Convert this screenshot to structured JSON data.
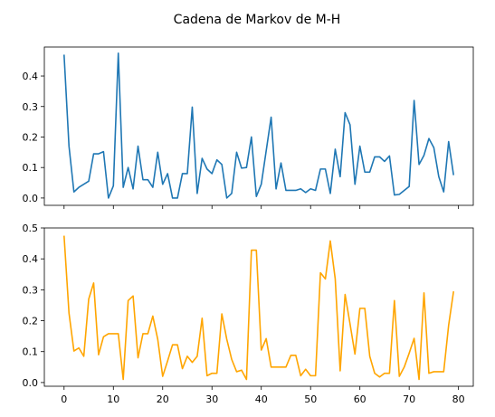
{
  "title": "Cadena de Markov de M-H",
  "colors": {
    "top_line": "#1f77b4",
    "bottom_line": "#ffa500",
    "axis": "#000000"
  },
  "chart_data": [
    {
      "type": "line",
      "xlim": [
        -4,
        83
      ],
      "ylim": [
        -0.024,
        0.495
      ],
      "yticks": [
        0.0,
        0.1,
        0.2,
        0.3,
        0.4
      ],
      "ytick_labels": [
        "0.0",
        "0.1",
        "0.2",
        "0.3",
        "0.4"
      ],
      "xticks": [
        0,
        10,
        20,
        30,
        40,
        50,
        60,
        70,
        80
      ],
      "xtick_labels_shown": false,
      "grid": false,
      "series": [
        {
          "x": [
            0,
            1,
            2,
            3,
            4,
            5,
            6,
            7,
            8,
            9,
            10,
            11,
            12,
            13,
            14,
            15,
            16,
            17,
            18,
            19,
            20,
            21,
            22,
            23,
            24,
            25,
            26,
            27,
            28,
            29,
            30,
            31,
            32,
            33,
            34,
            35,
            36,
            37,
            38,
            39,
            40,
            41,
            42,
            43,
            44,
            45,
            46,
            47,
            48,
            49,
            50,
            51,
            52,
            53,
            54,
            55,
            56,
            57,
            58,
            59,
            60,
            61,
            62,
            63,
            64,
            65,
            66,
            67,
            68,
            69,
            70,
            71,
            72,
            73,
            74,
            75,
            76,
            77,
            78,
            79
          ],
          "values": [
            0.47,
            0.17,
            0.02,
            0.035,
            0.045,
            0.055,
            0.145,
            0.145,
            0.152,
            0.0,
            0.04,
            0.475,
            0.035,
            0.1,
            0.03,
            0.17,
            0.06,
            0.06,
            0.035,
            0.15,
            0.045,
            0.08,
            0.0,
            0.0,
            0.08,
            0.08,
            0.298,
            0.015,
            0.13,
            0.095,
            0.08,
            0.125,
            0.11,
            0.0,
            0.015,
            0.15,
            0.098,
            0.1,
            0.2,
            0.005,
            0.045,
            0.155,
            0.265,
            0.03,
            0.115,
            0.025,
            0.025,
            0.025,
            0.03,
            0.018,
            0.03,
            0.025,
            0.095,
            0.095,
            0.015,
            0.16,
            0.07,
            0.28,
            0.24,
            0.045,
            0.17,
            0.085,
            0.085,
            0.135,
            0.135,
            0.12,
            0.138,
            0.01,
            0.012,
            0.025,
            0.038,
            0.32,
            0.11,
            0.14,
            0.195,
            0.165,
            0.07,
            0.02,
            0.185,
            0.075
          ]
        }
      ]
    },
    {
      "type": "line",
      "xlim": [
        -4,
        83
      ],
      "ylim": [
        -0.012,
        0.5
      ],
      "yticks": [
        0.0,
        0.1,
        0.2,
        0.3,
        0.4,
        0.5
      ],
      "ytick_labels": [
        "0.0",
        "0.1",
        "0.2",
        "0.3",
        "0.4",
        "0.5"
      ],
      "xticks": [
        0,
        10,
        20,
        30,
        40,
        50,
        60,
        70,
        80
      ],
      "xtick_labels": [
        "0",
        "10",
        "20",
        "30",
        "40",
        "50",
        "60",
        "70",
        "80"
      ],
      "grid": false,
      "series": [
        {
          "x": [
            0,
            1,
            2,
            3,
            4,
            5,
            6,
            7,
            8,
            9,
            10,
            11,
            12,
            13,
            14,
            15,
            16,
            17,
            18,
            19,
            20,
            21,
            22,
            23,
            24,
            25,
            26,
            27,
            28,
            29,
            30,
            31,
            32,
            33,
            34,
            35,
            36,
            37,
            38,
            39,
            40,
            41,
            42,
            43,
            44,
            45,
            46,
            47,
            48,
            49,
            50,
            51,
            52,
            53,
            54,
            55,
            56,
            57,
            58,
            59,
            60,
            61,
            62,
            63,
            64,
            65,
            66,
            67,
            68,
            69,
            70,
            71,
            72,
            73,
            74,
            75,
            76,
            77,
            78,
            79
          ],
          "values": [
            0.475,
            0.225,
            0.102,
            0.112,
            0.085,
            0.27,
            0.322,
            0.09,
            0.148,
            0.158,
            0.158,
            0.158,
            0.01,
            0.265,
            0.28,
            0.08,
            0.158,
            0.158,
            0.215,
            0.14,
            0.02,
            0.07,
            0.122,
            0.122,
            0.045,
            0.085,
            0.065,
            0.085,
            0.208,
            0.022,
            0.03,
            0.03,
            0.222,
            0.14,
            0.075,
            0.035,
            0.04,
            0.01,
            0.428,
            0.428,
            0.105,
            0.142,
            0.05,
            0.05,
            0.05,
            0.05,
            0.088,
            0.088,
            0.022,
            0.043,
            0.022,
            0.022,
            0.355,
            0.335,
            0.458,
            0.335,
            0.038,
            0.285,
            0.19,
            0.092,
            0.24,
            0.24,
            0.085,
            0.03,
            0.018,
            0.03,
            0.03,
            0.265,
            0.02,
            0.05,
            0.095,
            0.143,
            0.01,
            0.29,
            0.03,
            0.035,
            0.035,
            0.035,
            0.185,
            0.295
          ]
        }
      ]
    }
  ]
}
